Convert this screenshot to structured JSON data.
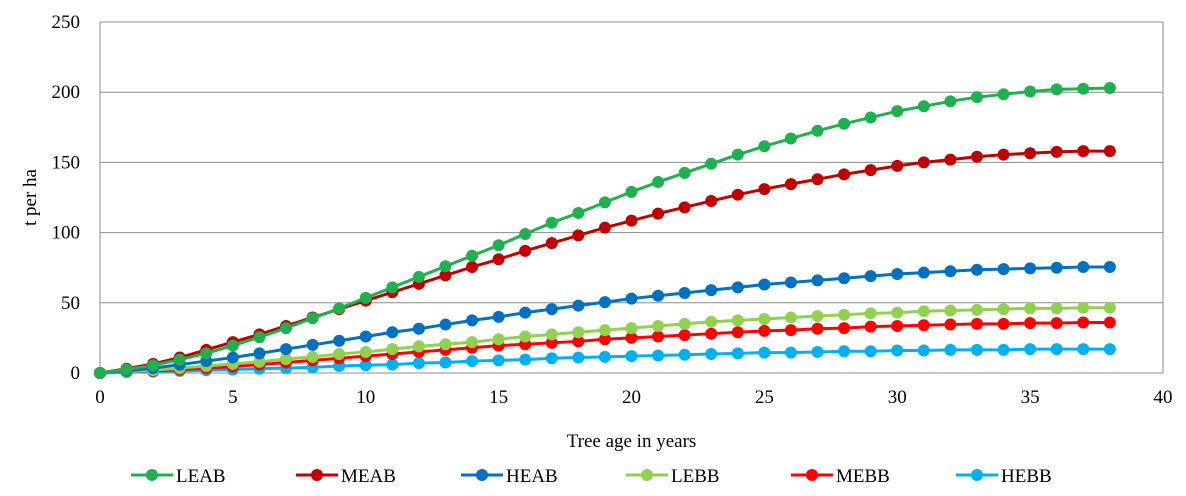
{
  "chart_data": {
    "type": "line",
    "title": "",
    "xlabel": "Tree age in years",
    "ylabel": "t per ha",
    "xlim": [
      0,
      40
    ],
    "ylim": [
      0,
      250
    ],
    "xticks": [
      0,
      5,
      10,
      15,
      20,
      25,
      30,
      35,
      40
    ],
    "yticks": [
      0,
      50,
      100,
      150,
      200,
      250
    ],
    "grid": "horizontal",
    "legend_position": "bottom",
    "x": [
      0,
      1,
      2,
      3,
      4,
      5,
      6,
      7,
      8,
      9,
      10,
      11,
      12,
      13,
      14,
      15,
      16,
      17,
      18,
      19,
      20,
      21,
      22,
      23,
      24,
      25,
      26,
      27,
      28,
      29,
      30,
      31,
      32,
      33,
      34,
      35,
      36,
      37,
      38
    ],
    "series": [
      {
        "name": "LEAB",
        "color": "#1fb050",
        "values": [
          0,
          2.5,
          5.5,
          9.5,
          14,
          19.5,
          25.5,
          32,
          39,
          46,
          53.5,
          61,
          68.5,
          76,
          83.5,
          91,
          99,
          107,
          114,
          121.5,
          129,
          136,
          142.5,
          149,
          155.5,
          161.5,
          167,
          172.5,
          177.5,
          182,
          186.5,
          190,
          193.5,
          196.5,
          198.5,
          200.5,
          202,
          202.5,
          203
        ]
      },
      {
        "name": "MEAB",
        "color": "#c00000",
        "values": [
          0,
          3,
          6.5,
          11,
          16.5,
          22,
          27.5,
          33.5,
          39.5,
          45.5,
          51.5,
          57.5,
          63.5,
          69.5,
          75.5,
          81,
          87,
          92.5,
          98,
          103.5,
          108.5,
          113.5,
          118,
          122.5,
          127,
          131,
          134.5,
          138,
          141.5,
          144.5,
          147.5,
          150,
          152,
          154,
          155.5,
          156.5,
          157.5,
          158,
          158
        ]
      },
      {
        "name": "HEAB",
        "color": "#0070c0",
        "values": [
          0,
          1.5,
          3.5,
          6,
          8.5,
          11,
          14,
          17,
          20,
          23,
          26,
          29,
          31.5,
          34.5,
          37.5,
          40,
          43,
          45.5,
          48,
          50.5,
          53,
          55,
          57,
          59,
          61,
          63,
          64.5,
          66,
          67.5,
          69,
          70.5,
          71.5,
          72.5,
          73.5,
          74,
          74.5,
          75,
          75.5,
          75.5
        ]
      },
      {
        "name": "LEBB",
        "color": "#92d050",
        "values": [
          0,
          1,
          2,
          3.5,
          5,
          6.5,
          8,
          10,
          11.5,
          13.5,
          15,
          17,
          19,
          20.5,
          22,
          24,
          26,
          27.5,
          29,
          30.5,
          32,
          33.5,
          35,
          36.5,
          37.5,
          38.5,
          39.5,
          40.5,
          41.5,
          42.5,
          43,
          44,
          44.5,
          45,
          45.5,
          46,
          46,
          46.5,
          46.5
        ]
      },
      {
        "name": "MEBB",
        "color": "#ff0000",
        "values": [
          0,
          1,
          1.5,
          2.5,
          3.5,
          4.5,
          6,
          7.5,
          9,
          10.5,
          12,
          13.5,
          15,
          16.5,
          18,
          19.5,
          20.5,
          21.5,
          22.5,
          24,
          25,
          26,
          27,
          28,
          29,
          30,
          30.5,
          31.5,
          32,
          33,
          33.5,
          34,
          34.5,
          35,
          35,
          35.5,
          35.5,
          36,
          36
        ]
      },
      {
        "name": "HEBB",
        "color": "#00b0f0",
        "values": [
          0,
          0.5,
          1,
          1.5,
          2,
          2.5,
          3,
          3.5,
          4,
          5,
          5.5,
          6,
          7,
          7.5,
          8.5,
          9,
          9.5,
          10.5,
          11,
          11.5,
          12,
          12.5,
          13,
          13.5,
          14,
          14.5,
          14.5,
          15,
          15.5,
          15.5,
          16,
          16,
          16.5,
          16.5,
          16.5,
          17,
          17,
          17,
          17
        ]
      }
    ]
  }
}
